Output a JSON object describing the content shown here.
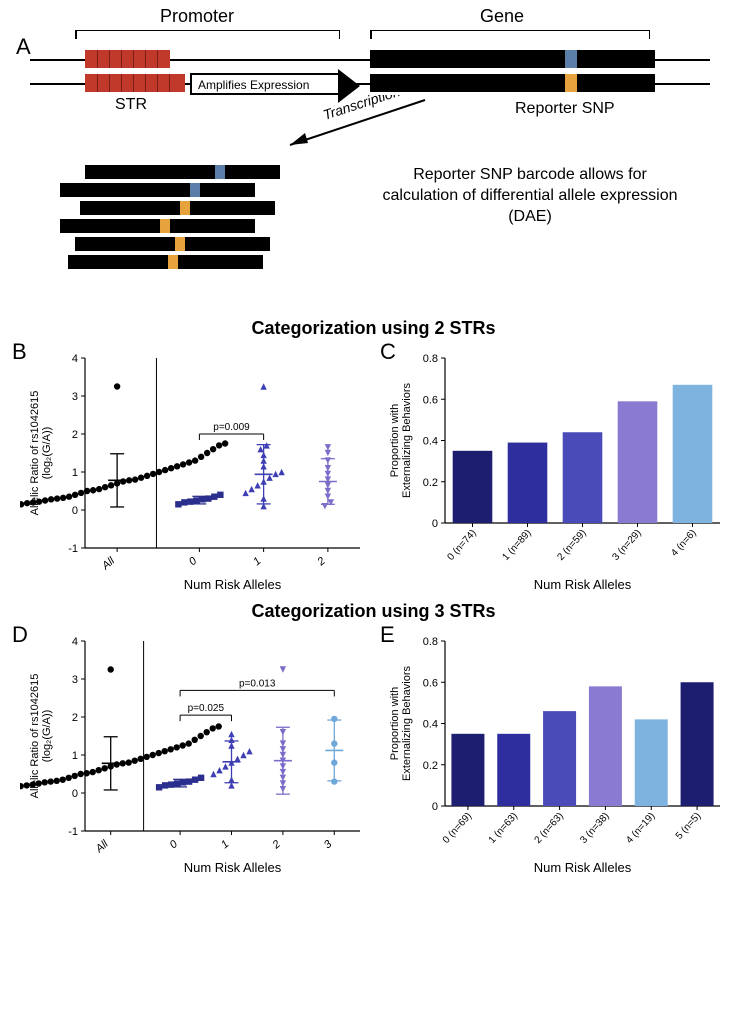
{
  "panelA": {
    "labels": {
      "panel": "A",
      "promoter": "Promoter",
      "gene": "Gene",
      "str": "STR",
      "reporter": "Reporter SNP",
      "amplifies": "Amplifies Expression",
      "transcription": "Transcription",
      "dae": "Reporter SNP barcode allows for calculation of differential allele expression  (DAE)"
    },
    "colors": {
      "str": "#c0392b",
      "snp_blue": "#5b7ea8",
      "snp_orange": "#e6a23c",
      "block": "#000000"
    }
  },
  "section2_title": "Categorization using 2 STRs",
  "section3_title": "Categorization using 3 STRs",
  "panelB": {
    "label": "B",
    "y_title": "Allelic Ratio of rs1042615\n(log₂(G/A))",
    "x_title": "Num Risk Alleles",
    "ylim": [
      -1,
      4
    ],
    "yticks": [
      -1,
      0,
      1,
      2,
      3,
      4
    ],
    "groups": [
      "All",
      "0",
      "1",
      "2"
    ],
    "colors": [
      "#000000",
      "#2b2e8c",
      "#3f3fb5",
      "#7d6cc9"
    ],
    "markers": [
      "circle",
      "square",
      "triangle-up",
      "triangle-down"
    ],
    "pvals": [
      {
        "from": 1,
        "to": 2,
        "text": "p=0.009",
        "y": 2.0
      }
    ],
    "stats": [
      {
        "mean": 0.78,
        "sd": 0.7
      },
      {
        "mean": 0.26,
        "sd": 0.1
      },
      {
        "mean": 0.94,
        "sd": 0.78
      },
      {
        "mean": 0.75,
        "sd": 0.6
      }
    ],
    "points": {
      "All": [
        0.05,
        0.1,
        0.15,
        0.18,
        0.2,
        0.22,
        0.25,
        0.28,
        0.3,
        0.32,
        0.35,
        0.4,
        0.45,
        0.5,
        0.52,
        0.55,
        0.6,
        0.65,
        0.7,
        0.75,
        0.78,
        0.8,
        0.85,
        0.9,
        0.95,
        1.0,
        1.05,
        1.1,
        1.15,
        1.2,
        1.25,
        1.3,
        1.4,
        1.5,
        1.6,
        1.7,
        1.75,
        3.25
      ],
      "0": [
        0.15,
        0.2,
        0.22,
        0.25,
        0.28,
        0.3,
        0.35,
        0.4
      ],
      "1": [
        0.1,
        0.3,
        0.45,
        0.55,
        0.65,
        0.75,
        0.85,
        0.95,
        1.0,
        1.15,
        1.3,
        1.45,
        1.6,
        1.7,
        3.25
      ],
      "2": [
        0.1,
        0.2,
        0.35,
        0.5,
        0.65,
        0.8,
        0.95,
        1.1,
        1.3,
        1.5,
        1.65
      ]
    }
  },
  "panelC": {
    "label": "C",
    "y_title": "Proportion with\nExternalizing Behaviors",
    "x_title": "Num Risk Alleles",
    "ylim": [
      0,
      0.8
    ],
    "yticks": [
      0,
      0.2,
      0.4,
      0.6,
      0.8
    ],
    "categories": [
      "0 (n=74)",
      "1 (n=89)",
      "2 (n=59)",
      "3 (n=29)",
      "4 (n=6)"
    ],
    "values": [
      0.35,
      0.39,
      0.44,
      0.59,
      0.67
    ],
    "colors": [
      "#1e1e70",
      "#2e2e9e",
      "#4a4ab8",
      "#8a7ad1",
      "#7fb3df"
    ],
    "bar_width": 0.72
  },
  "panelD": {
    "label": "D",
    "y_title": "Allelic Ratio of rs1042615\n(log₂(G/A))",
    "x_title": "Num Risk Alleles",
    "ylim": [
      -1,
      4
    ],
    "yticks": [
      -1,
      0,
      1,
      2,
      3,
      4
    ],
    "groups": [
      "All",
      "0",
      "1",
      "2",
      "3"
    ],
    "colors": [
      "#000000",
      "#2b2e8c",
      "#3f3fb5",
      "#7d6cc9",
      "#6fa8d8"
    ],
    "markers": [
      "circle",
      "square",
      "triangle-up",
      "triangle-down",
      "circle"
    ],
    "pvals": [
      {
        "from": 1,
        "to": 2,
        "text": "p=0.025",
        "y": 2.05
      },
      {
        "from": 1,
        "to": 4,
        "text": "p=0.013",
        "y": 2.7
      }
    ],
    "stats": [
      {
        "mean": 0.78,
        "sd": 0.7
      },
      {
        "mean": 0.26,
        "sd": 0.1
      },
      {
        "mean": 0.82,
        "sd": 0.55
      },
      {
        "mean": 0.85,
        "sd": 0.88
      },
      {
        "mean": 1.12,
        "sd": 0.8
      }
    ],
    "points": {
      "All": [
        0.05,
        0.1,
        0.15,
        0.18,
        0.2,
        0.22,
        0.25,
        0.28,
        0.3,
        0.32,
        0.35,
        0.4,
        0.45,
        0.5,
        0.52,
        0.55,
        0.6,
        0.65,
        0.7,
        0.75,
        0.78,
        0.8,
        0.85,
        0.9,
        0.95,
        1.0,
        1.05,
        1.1,
        1.15,
        1.2,
        1.25,
        1.3,
        1.4,
        1.5,
        1.6,
        1.7,
        1.75,
        3.25
      ],
      "0": [
        0.15,
        0.2,
        0.22,
        0.25,
        0.28,
        0.3,
        0.35,
        0.4
      ],
      "1": [
        0.2,
        0.35,
        0.5,
        0.6,
        0.7,
        0.8,
        0.9,
        1.0,
        1.1,
        1.25,
        1.4,
        1.55
      ],
      "2": [
        0.1,
        0.25,
        0.4,
        0.55,
        0.7,
        0.85,
        1.0,
        1.15,
        1.3,
        1.6,
        3.25
      ],
      "3": [
        0.3,
        0.8,
        1.3,
        1.95
      ]
    }
  },
  "panelE": {
    "label": "E",
    "y_title": "Proportion with\nExternalizing Behaviors",
    "x_title": "Num Risk Alleles",
    "ylim": [
      0,
      0.8
    ],
    "yticks": [
      0,
      0.2,
      0.4,
      0.6,
      0.8
    ],
    "categories": [
      "0 (n=69)",
      "1 (n=63)",
      "2 (n=63)",
      "3 (n=38)",
      "4 (n=19)",
      "5 (n=5)"
    ],
    "values": [
      0.35,
      0.35,
      0.46,
      0.58,
      0.42,
      0.6
    ],
    "colors": [
      "#1e1e70",
      "#2e2e9e",
      "#4a4ab8",
      "#8a7ad1",
      "#7fb3df",
      "#1e1e70"
    ],
    "bar_width": 0.72
  }
}
